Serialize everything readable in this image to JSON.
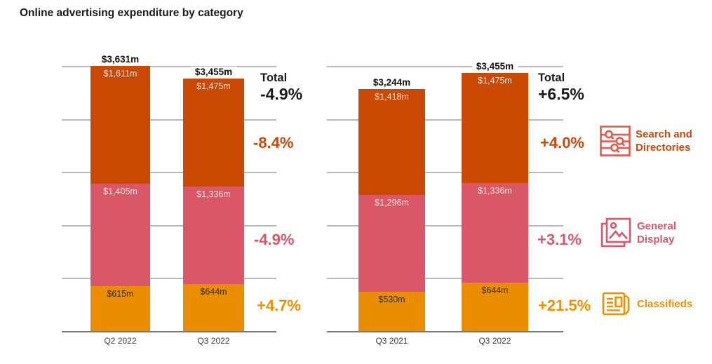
{
  "title": "Online advertising expenditure by category",
  "colors": {
    "search_directories": "#CB4A03",
    "general_display": "#DA5768",
    "classifieds": "#EB8D00",
    "search_text": "#C9490A",
    "display_text": "#D9566B",
    "classifieds_text": "#EE9300",
    "search_icon": "#E25A4E",
    "total_text": "#1A1A1A",
    "gridline": "#B9B9B9",
    "axis_line": "#787878",
    "segment_label_light": "#EDE2DD",
    "segment_label_dark": "#2E2B27"
  },
  "legend": [
    {
      "label": "Search and Directories",
      "lines": [
        "Search and",
        "Directories"
      ],
      "icon": "search-directories-icon"
    },
    {
      "label": "General Display",
      "lines": [
        "General",
        "Display"
      ],
      "icon": "general-display-icon"
    },
    {
      "label": "Classifieds",
      "lines": [
        "Classifieds"
      ],
      "icon": "classifieds-icon"
    }
  ],
  "chart_data": [
    {
      "type": "bar",
      "stacked": true,
      "grid": true,
      "categories": [
        "Q2 2022",
        "Q3 2022"
      ],
      "series": [
        {
          "name": "Search and Directories",
          "values": [
            1611,
            1475
          ],
          "value_labels": [
            "$1,611m",
            "$1,475m"
          ]
        },
        {
          "name": "General Display",
          "values": [
            1405,
            1336
          ],
          "value_labels": [
            "$1,405m",
            "$1,336m"
          ]
        },
        {
          "name": "Classifieds",
          "values": [
            615,
            644
          ],
          "value_labels": [
            "$615m",
            "$644m"
          ]
        }
      ],
      "total_values": [
        3631,
        3455
      ],
      "total_labels": [
        "$3,631m",
        "$3,455m"
      ],
      "unit": "$m",
      "annotations": {
        "total_label": "Total",
        "total_change": "-4.9%",
        "search_change": "-8.4%",
        "display_change": "-4.9%",
        "classifieds_change": "+4.7%"
      }
    },
    {
      "type": "bar",
      "stacked": true,
      "grid": true,
      "categories": [
        "Q3 2021",
        "Q3 2022"
      ],
      "series": [
        {
          "name": "Search and Directories",
          "values": [
            1418,
            1475
          ],
          "value_labels": [
            "$1,418m",
            "$1,475m"
          ]
        },
        {
          "name": "General Display",
          "values": [
            1296,
            1336
          ],
          "value_labels": [
            "$1,296m",
            "$1,336m"
          ]
        },
        {
          "name": "Classifieds",
          "values": [
            530,
            644
          ],
          "value_labels": [
            "$530m",
            "$644m"
          ]
        }
      ],
      "total_values": [
        3244,
        3455
      ],
      "total_labels": [
        "$3,244m",
        "$3,455m"
      ],
      "unit": "$m",
      "annotations": {
        "total_label": "Total",
        "total_change": "+6.5%",
        "search_change": "+4.0%",
        "display_change": "+3.1%",
        "classifieds_change": "+21.5%"
      }
    }
  ]
}
